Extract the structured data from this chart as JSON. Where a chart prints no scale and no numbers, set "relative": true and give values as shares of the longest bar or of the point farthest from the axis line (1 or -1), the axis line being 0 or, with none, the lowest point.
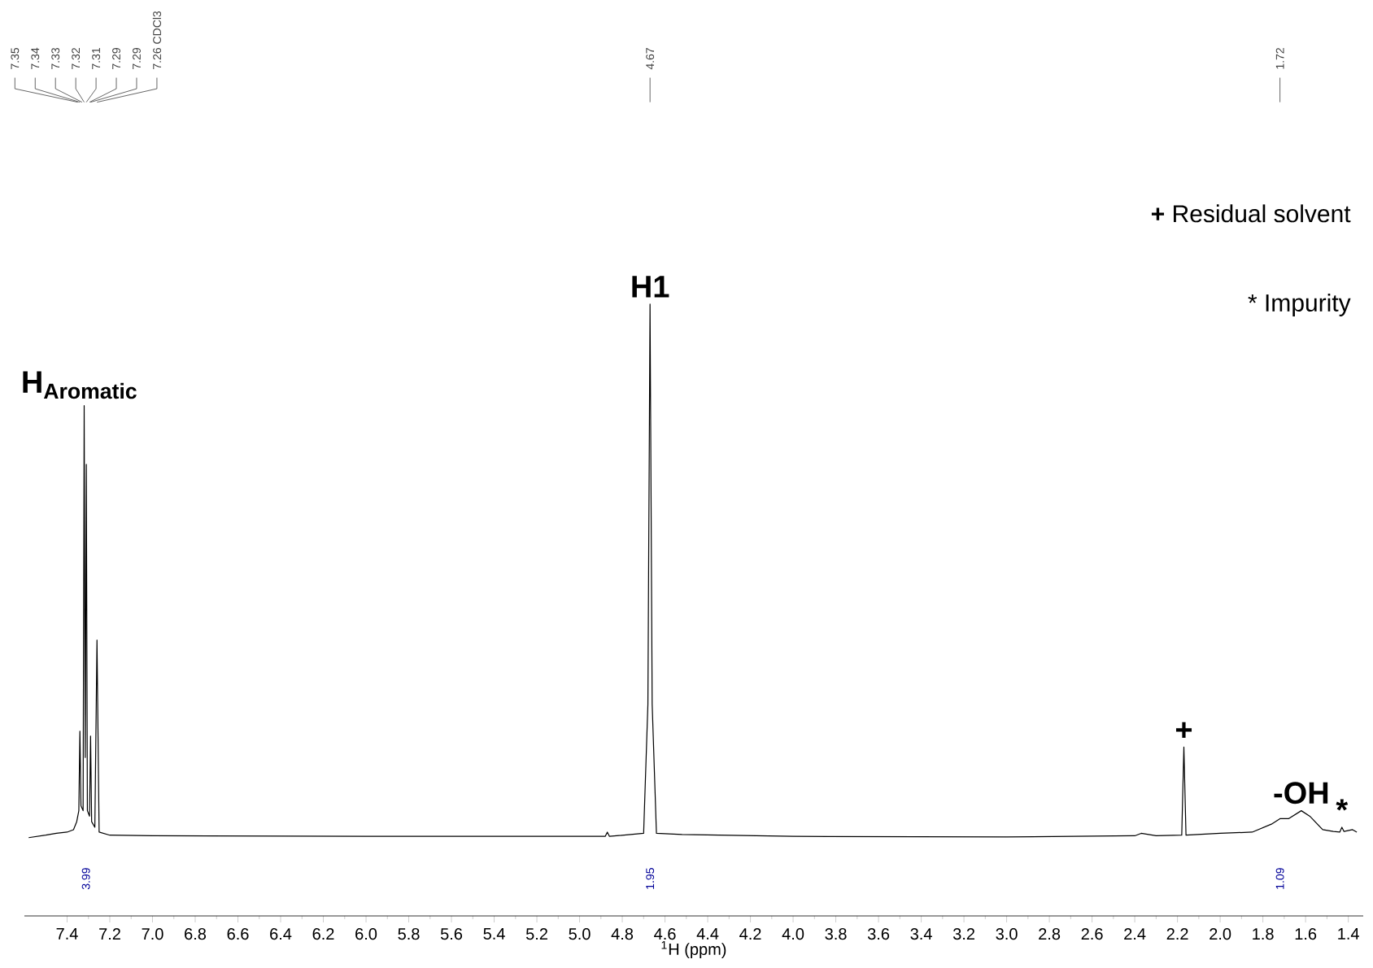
{
  "chart_data": {
    "type": "line",
    "relative": true,
    "color": "#000000",
    "xlabel": "$^{1}$H (ppm)",
    "xlim": [
      7.6,
      1.33
    ],
    "xticks": [
      7.4,
      7.2,
      {
        "value": 7.0,
        "label": "7.0"
      },
      6.8,
      6.6,
      6.4,
      6.2,
      {
        "value": 6.0,
        "label": "6.0"
      },
      5.8,
      5.6,
      5.4,
      5.2,
      {
        "value": 5.0,
        "label": "5.0"
      },
      4.8,
      4.6,
      4.4,
      4.2,
      {
        "value": 4.0,
        "label": "4.0"
      },
      3.8,
      3.6,
      3.4,
      3.2,
      {
        "value": 3.0,
        "label": "3.0"
      },
      2.8,
      2.6,
      2.4,
      2.2,
      {
        "value": 2.0,
        "label": "2.0"
      },
      1.8,
      1.6,
      1.4
    ],
    "x": [
      7.58,
      7.5,
      7.45,
      7.4,
      7.37,
      7.355,
      7.345,
      7.34,
      7.335,
      7.325,
      7.32,
      7.315,
      7.31,
      7.305,
      7.295,
      7.29,
      7.285,
      7.27,
      7.26,
      7.25,
      7.2,
      7.0,
      6.0,
      5.0,
      4.88,
      4.87,
      4.86,
      4.7,
      4.68,
      4.67,
      4.66,
      4.64,
      4.52,
      4.0,
      3.0,
      2.4,
      2.37,
      2.3,
      2.18,
      2.17,
      2.16,
      2.0,
      1.85,
      1.76,
      1.72,
      1.68,
      1.62,
      1.58,
      1.52,
      1.47,
      1.44,
      1.43,
      1.42,
      1.38,
      1.36
    ],
    "values": [
      0.128,
      0.132,
      0.135,
      0.137,
      0.141,
      0.154,
      0.172,
      0.302,
      0.18,
      0.172,
      0.834,
      0.259,
      0.738,
      0.172,
      0.163,
      0.294,
      0.154,
      0.145,
      0.451,
      0.137,
      0.132,
      0.131,
      0.13,
      0.13,
      0.13,
      0.137,
      0.13,
      0.135,
      0.346,
      1.0,
      0.346,
      0.135,
      0.133,
      0.13,
      0.129,
      0.131,
      0.135,
      0.131,
      0.132,
      0.276,
      0.132,
      0.135,
      0.137,
      0.15,
      0.159,
      0.159,
      0.172,
      0.163,
      0.141,
      0.138,
      0.137,
      0.145,
      0.138,
      0.141,
      0.137
    ],
    "annotations": [
      {
        "text": "7.35",
        "x": 7.35
      },
      {
        "text": "7.34",
        "x": 7.34
      },
      {
        "text": "7.33",
        "x": 7.33
      },
      {
        "text": "7.32",
        "x": 7.32
      },
      {
        "text": "7.31",
        "x": 7.31
      },
      {
        "text": "7.29",
        "x": 7.295
      },
      {
        "text": "7.29",
        "x": 7.29
      },
      {
        "text": "7.26 CDCl3",
        "x": 7.26
      },
      {
        "text": "4.67",
        "x": 4.67
      },
      {
        "text": "1.72",
        "x": 1.72
      },
      {
        "text": "H$_{Aromatic}$",
        "x": 7.32,
        "y": 0.834
      },
      {
        "text": "H1",
        "x": 4.67,
        "y": 1.0
      },
      {
        "text": "+",
        "x": 2.17,
        "y": 0.276
      },
      {
        "text": "-OH",
        "x": 1.62,
        "y": 0.172
      },
      {
        "text": "*",
        "x": 1.43,
        "y": 0.145
      },
      "3.99",
      "1.95",
      "1.09",
      "**+** Residual solvent",
      "* Impurity"
    ]
  }
}
